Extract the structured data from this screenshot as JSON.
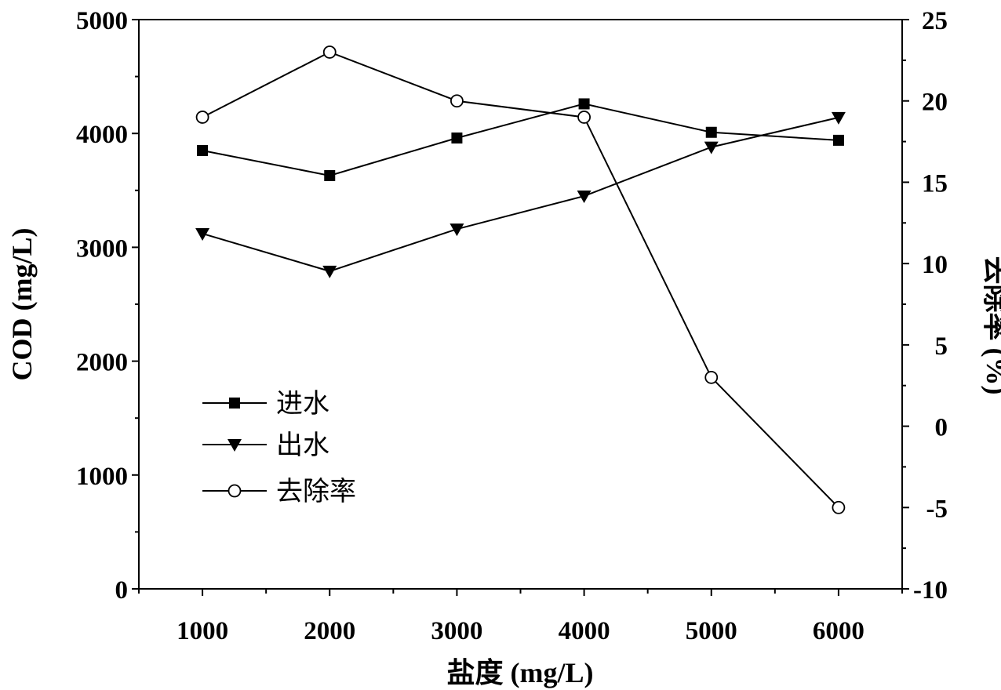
{
  "chart_data": {
    "type": "line",
    "xlabel": "盐度 (mg/L)",
    "ylabel": "COD (mg/L)",
    "y2label": "去除率 (%)",
    "x": [
      1000,
      2000,
      3000,
      4000,
      5000,
      6000
    ],
    "x_ticks": [
      "1000",
      "2000",
      "3000",
      "4000",
      "5000",
      "6000"
    ],
    "xlim": [
      500,
      6500
    ],
    "ylim": [
      0,
      5000
    ],
    "y_ticks": [
      "0",
      "1000",
      "2000",
      "3000",
      "4000",
      "5000"
    ],
    "y2lim": [
      -10,
      25
    ],
    "y2_ticks": [
      "-10",
      "-5",
      "0",
      "5",
      "10",
      "15",
      "20",
      "25"
    ],
    "grid": false,
    "legend_position": "lower-left",
    "series": [
      {
        "name": "进水",
        "axis": "left",
        "marker": "filled-square",
        "values": [
          3850,
          3630,
          3960,
          4260,
          4010,
          3940
        ]
      },
      {
        "name": "出水",
        "axis": "left",
        "marker": "filled-triangle-down",
        "values": [
          3120,
          2790,
          3160,
          3450,
          3880,
          4140
        ]
      },
      {
        "name": "去除率",
        "axis": "right",
        "marker": "open-circle",
        "values": [
          19,
          23,
          20,
          19,
          3,
          -5
        ]
      }
    ]
  }
}
